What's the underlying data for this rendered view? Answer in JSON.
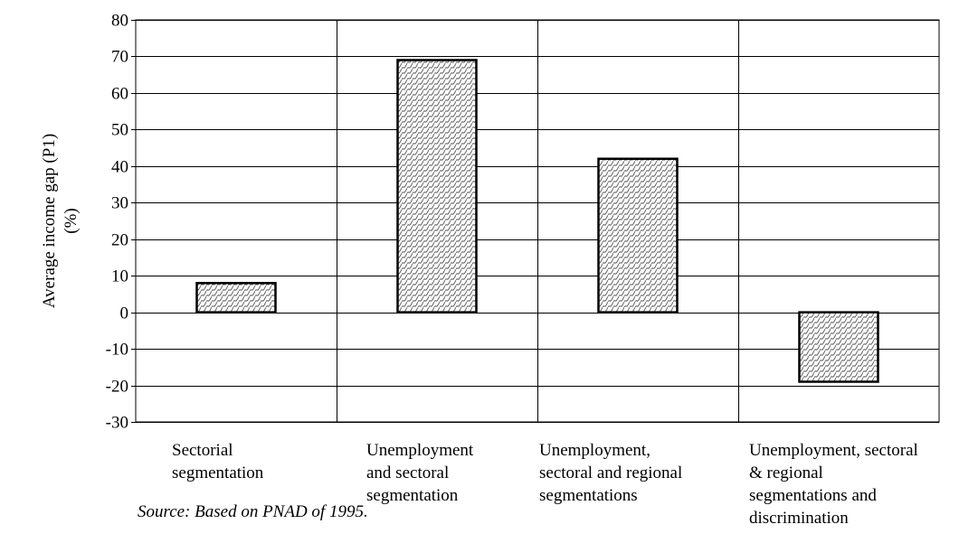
{
  "chart_data": {
    "type": "bar",
    "categories": [
      [
        "Sectorial",
        "segmentation"
      ],
      [
        "Unemployment",
        "and sectoral",
        "segmentation"
      ],
      [
        "Unemployment,",
        "sectoral and regional",
        "segmentations"
      ],
      [
        "Unemployment, sectoral",
        "& regional",
        "segmentations and",
        "discrimination"
      ]
    ],
    "values": [
      8,
      69,
      42,
      -19
    ],
    "ylabel_lines": [
      "Average  income gap (P1)",
      "(%)"
    ],
    "xlabel": "",
    "ylim": [
      -30,
      80
    ],
    "yticks": [
      80,
      70,
      60,
      50,
      40,
      30,
      20,
      10,
      0,
      -10,
      -20,
      -30
    ],
    "grid": "horizontal and vertical",
    "bar_fill": "diagonal wave hatch",
    "legend": "none"
  },
  "source": "Source: Based on PNAD of 1995."
}
